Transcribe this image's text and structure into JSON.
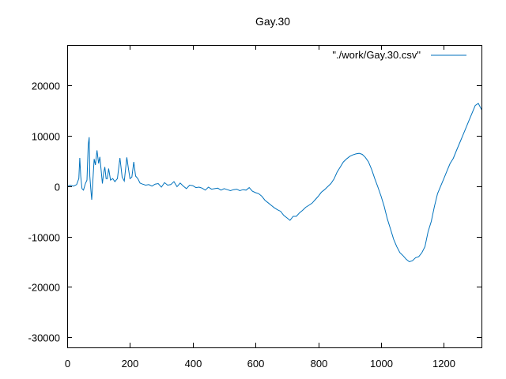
{
  "chart_data": {
    "type": "line",
    "title": "Gay.30",
    "xlabel": "",
    "ylabel": "",
    "xlim": [
      0,
      1320
    ],
    "ylim": [
      -32000,
      28000
    ],
    "xticks": [
      0,
      200,
      400,
      600,
      800,
      1000,
      1200
    ],
    "yticks": [
      -30000,
      -20000,
      -10000,
      0,
      10000,
      20000
    ],
    "grid": false,
    "legend_position": "top-right",
    "series": [
      {
        "name": "\"./work/Gay.30.csv\"",
        "color": "#0072bd",
        "points": [
          [
            0,
            0
          ],
          [
            10,
            200
          ],
          [
            20,
            0
          ],
          [
            30,
            300
          ],
          [
            37,
            1500
          ],
          [
            40,
            5600
          ],
          [
            43,
            2000
          ],
          [
            47,
            -500
          ],
          [
            52,
            -800
          ],
          [
            58,
            500
          ],
          [
            63,
            1200
          ],
          [
            67,
            8200
          ],
          [
            70,
            9700
          ],
          [
            72,
            2000
          ],
          [
            75,
            -500
          ],
          [
            78,
            -2700
          ],
          [
            82,
            1500
          ],
          [
            86,
            5400
          ],
          [
            90,
            4200
          ],
          [
            95,
            7100
          ],
          [
            100,
            4500
          ],
          [
            104,
            5800
          ],
          [
            108,
            3200
          ],
          [
            112,
            500
          ],
          [
            116,
            2500
          ],
          [
            120,
            3800
          ],
          [
            124,
            1500
          ],
          [
            128,
            1500
          ],
          [
            132,
            3500
          ],
          [
            138,
            1200
          ],
          [
            145,
            1500
          ],
          [
            152,
            900
          ],
          [
            160,
            1500
          ],
          [
            168,
            5600
          ],
          [
            175,
            1800
          ],
          [
            182,
            1000
          ],
          [
            190,
            5700
          ],
          [
            195,
            3500
          ],
          [
            200,
            1500
          ],
          [
            206,
            1800
          ],
          [
            212,
            4800
          ],
          [
            218,
            2000
          ],
          [
            225,
            1500
          ],
          [
            232,
            600
          ],
          [
            240,
            400
          ],
          [
            250,
            200
          ],
          [
            260,
            300
          ],
          [
            270,
            0
          ],
          [
            280,
            400
          ],
          [
            290,
            500
          ],
          [
            300,
            -200
          ],
          [
            310,
            700
          ],
          [
            320,
            200
          ],
          [
            330,
            300
          ],
          [
            340,
            900
          ],
          [
            350,
            -100
          ],
          [
            360,
            600
          ],
          [
            370,
            0
          ],
          [
            380,
            -500
          ],
          [
            390,
            200
          ],
          [
            400,
            100
          ],
          [
            410,
            -300
          ],
          [
            420,
            -200
          ],
          [
            430,
            -400
          ],
          [
            440,
            -800
          ],
          [
            450,
            -200
          ],
          [
            460,
            -600
          ],
          [
            470,
            -500
          ],
          [
            480,
            -400
          ],
          [
            490,
            -800
          ],
          [
            500,
            -500
          ],
          [
            510,
            -700
          ],
          [
            520,
            -900
          ],
          [
            530,
            -700
          ],
          [
            540,
            -600
          ],
          [
            550,
            -900
          ],
          [
            560,
            -700
          ],
          [
            570,
            -800
          ],
          [
            580,
            -300
          ],
          [
            590,
            -1000
          ],
          [
            600,
            -1300
          ],
          [
            610,
            -1500
          ],
          [
            620,
            -2000
          ],
          [
            630,
            -2800
          ],
          [
            640,
            -3300
          ],
          [
            650,
            -3800
          ],
          [
            660,
            -4300
          ],
          [
            670,
            -4700
          ],
          [
            680,
            -5000
          ],
          [
            690,
            -5800
          ],
          [
            700,
            -6300
          ],
          [
            710,
            -6800
          ],
          [
            720,
            -6000
          ],
          [
            730,
            -6000
          ],
          [
            740,
            -5300
          ],
          [
            750,
            -4800
          ],
          [
            760,
            -4200
          ],
          [
            770,
            -3800
          ],
          [
            780,
            -3400
          ],
          [
            790,
            -2700
          ],
          [
            800,
            -2000
          ],
          [
            810,
            -1200
          ],
          [
            820,
            -700
          ],
          [
            830,
            -100
          ],
          [
            840,
            500
          ],
          [
            850,
            1400
          ],
          [
            860,
            2800
          ],
          [
            870,
            3800
          ],
          [
            880,
            4800
          ],
          [
            890,
            5400
          ],
          [
            900,
            5900
          ],
          [
            910,
            6200
          ],
          [
            920,
            6400
          ],
          [
            930,
            6500
          ],
          [
            940,
            6300
          ],
          [
            950,
            5700
          ],
          [
            960,
            4800
          ],
          [
            970,
            3300
          ],
          [
            980,
            1500
          ],
          [
            990,
            -200
          ],
          [
            1000,
            -2000
          ],
          [
            1010,
            -4000
          ],
          [
            1020,
            -6500
          ],
          [
            1030,
            -8500
          ],
          [
            1040,
            -10500
          ],
          [
            1050,
            -12000
          ],
          [
            1060,
            -13200
          ],
          [
            1070,
            -13800
          ],
          [
            1080,
            -14500
          ],
          [
            1090,
            -15000
          ],
          [
            1100,
            -14800
          ],
          [
            1110,
            -14200
          ],
          [
            1120,
            -14000
          ],
          [
            1130,
            -13200
          ],
          [
            1140,
            -12000
          ],
          [
            1150,
            -9000
          ],
          [
            1160,
            -7000
          ],
          [
            1170,
            -4000
          ],
          [
            1180,
            -1500
          ],
          [
            1190,
            0
          ],
          [
            1200,
            1500
          ],
          [
            1210,
            3000
          ],
          [
            1220,
            4500
          ],
          [
            1230,
            5500
          ],
          [
            1240,
            7000
          ],
          [
            1250,
            8500
          ],
          [
            1260,
            10000
          ],
          [
            1270,
            11500
          ],
          [
            1280,
            13000
          ],
          [
            1290,
            14500
          ],
          [
            1300,
            16000
          ],
          [
            1310,
            16400
          ],
          [
            1320,
            15200
          ]
        ]
      }
    ]
  }
}
